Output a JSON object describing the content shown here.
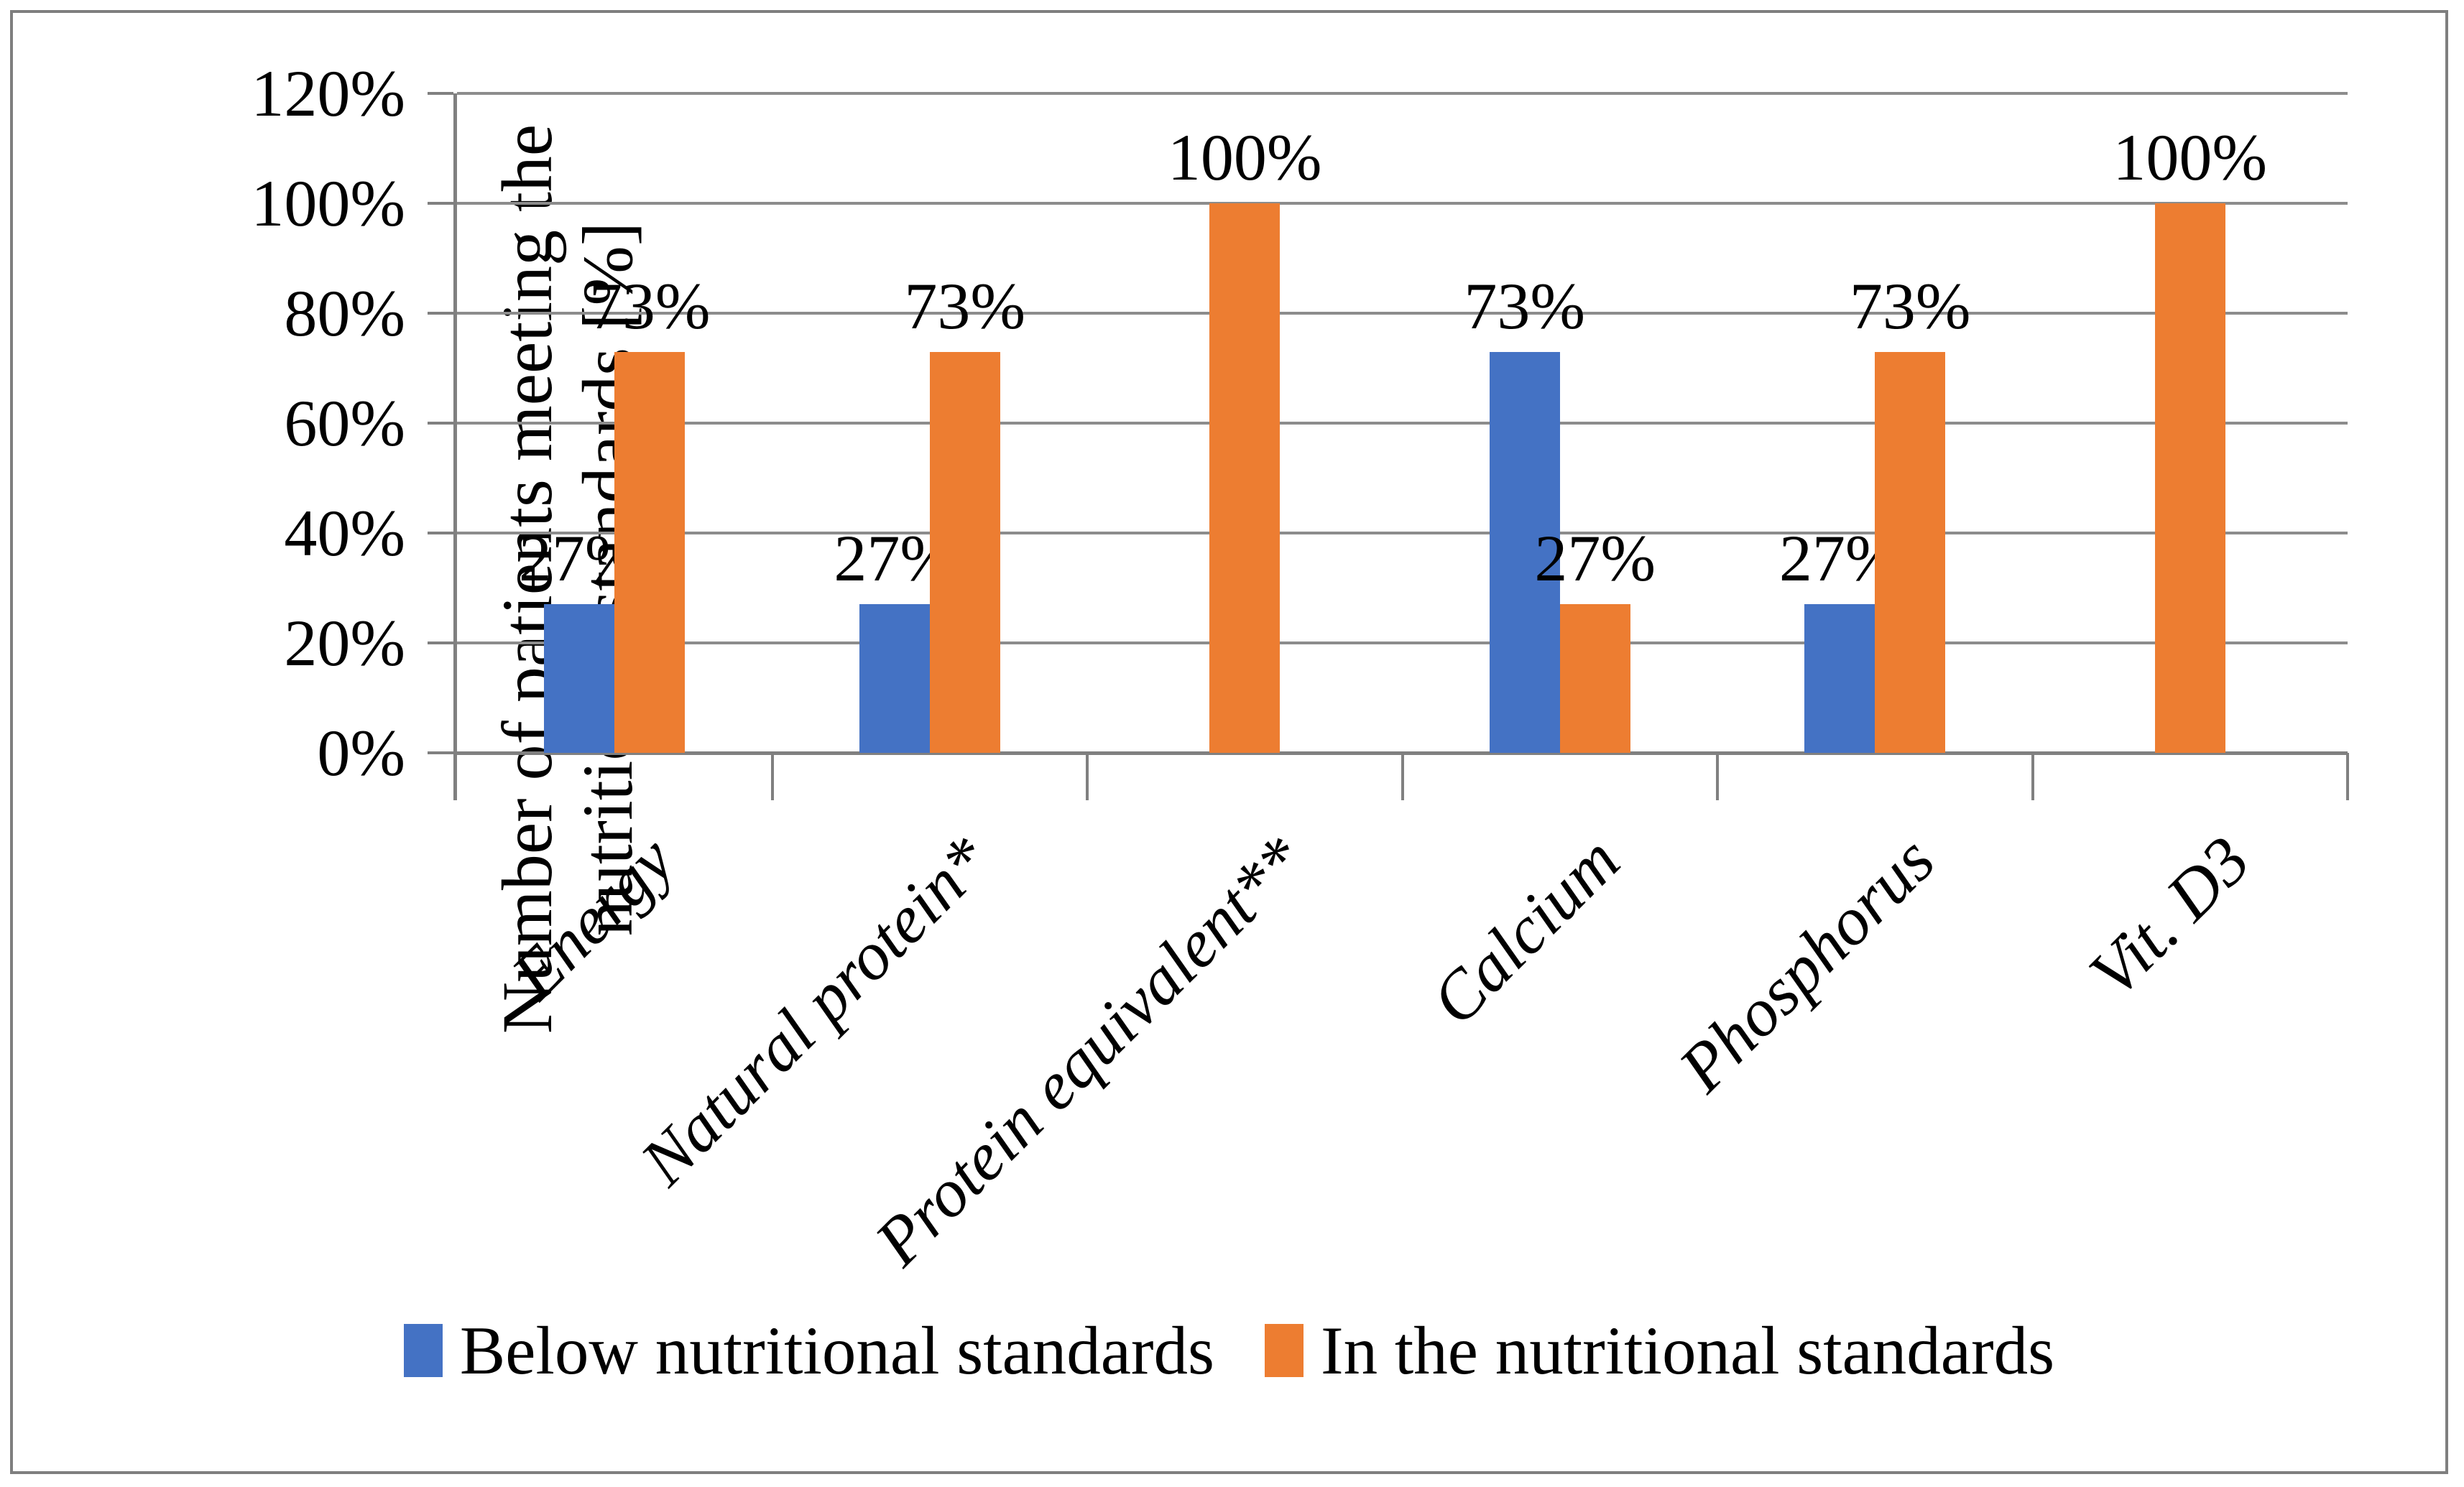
{
  "chart_data": {
    "type": "bar",
    "title": "",
    "categories": [
      "Energy",
      "Natural protein*",
      "Protein equivalent**",
      "Calcium",
      "Phosphorus",
      "Vit. D3"
    ],
    "series": [
      {
        "name": "Below nutritional standards",
        "color": "#4472C4",
        "values": [
          27,
          27,
          0,
          73,
          27,
          0
        ]
      },
      {
        "name": "In the nutritional standards",
        "color": "#ED7D31",
        "values": [
          73,
          73,
          100,
          27,
          73,
          100
        ]
      }
    ],
    "data_labels": [
      [
        "27%",
        "73%"
      ],
      [
        "27%",
        "73%"
      ],
      [
        "",
        "100%"
      ],
      [
        "73%",
        "27%"
      ],
      [
        "27%",
        "73%"
      ],
      [
        "",
        "100%"
      ]
    ],
    "ylabel_line1": "Number of patients meeting the",
    "ylabel_line2": "nutritional standards [%]",
    "xlabel": "",
    "yticks": [
      "120%",
      "100%",
      "80%",
      "60%",
      "40%",
      "20%",
      "0%"
    ],
    "ylim": [
      0,
      120
    ],
    "grid": true,
    "gridline_color": "#8C8C8C",
    "axis_color": "#808080",
    "legend_position": "bottom",
    "bar_value_unit": "%"
  }
}
